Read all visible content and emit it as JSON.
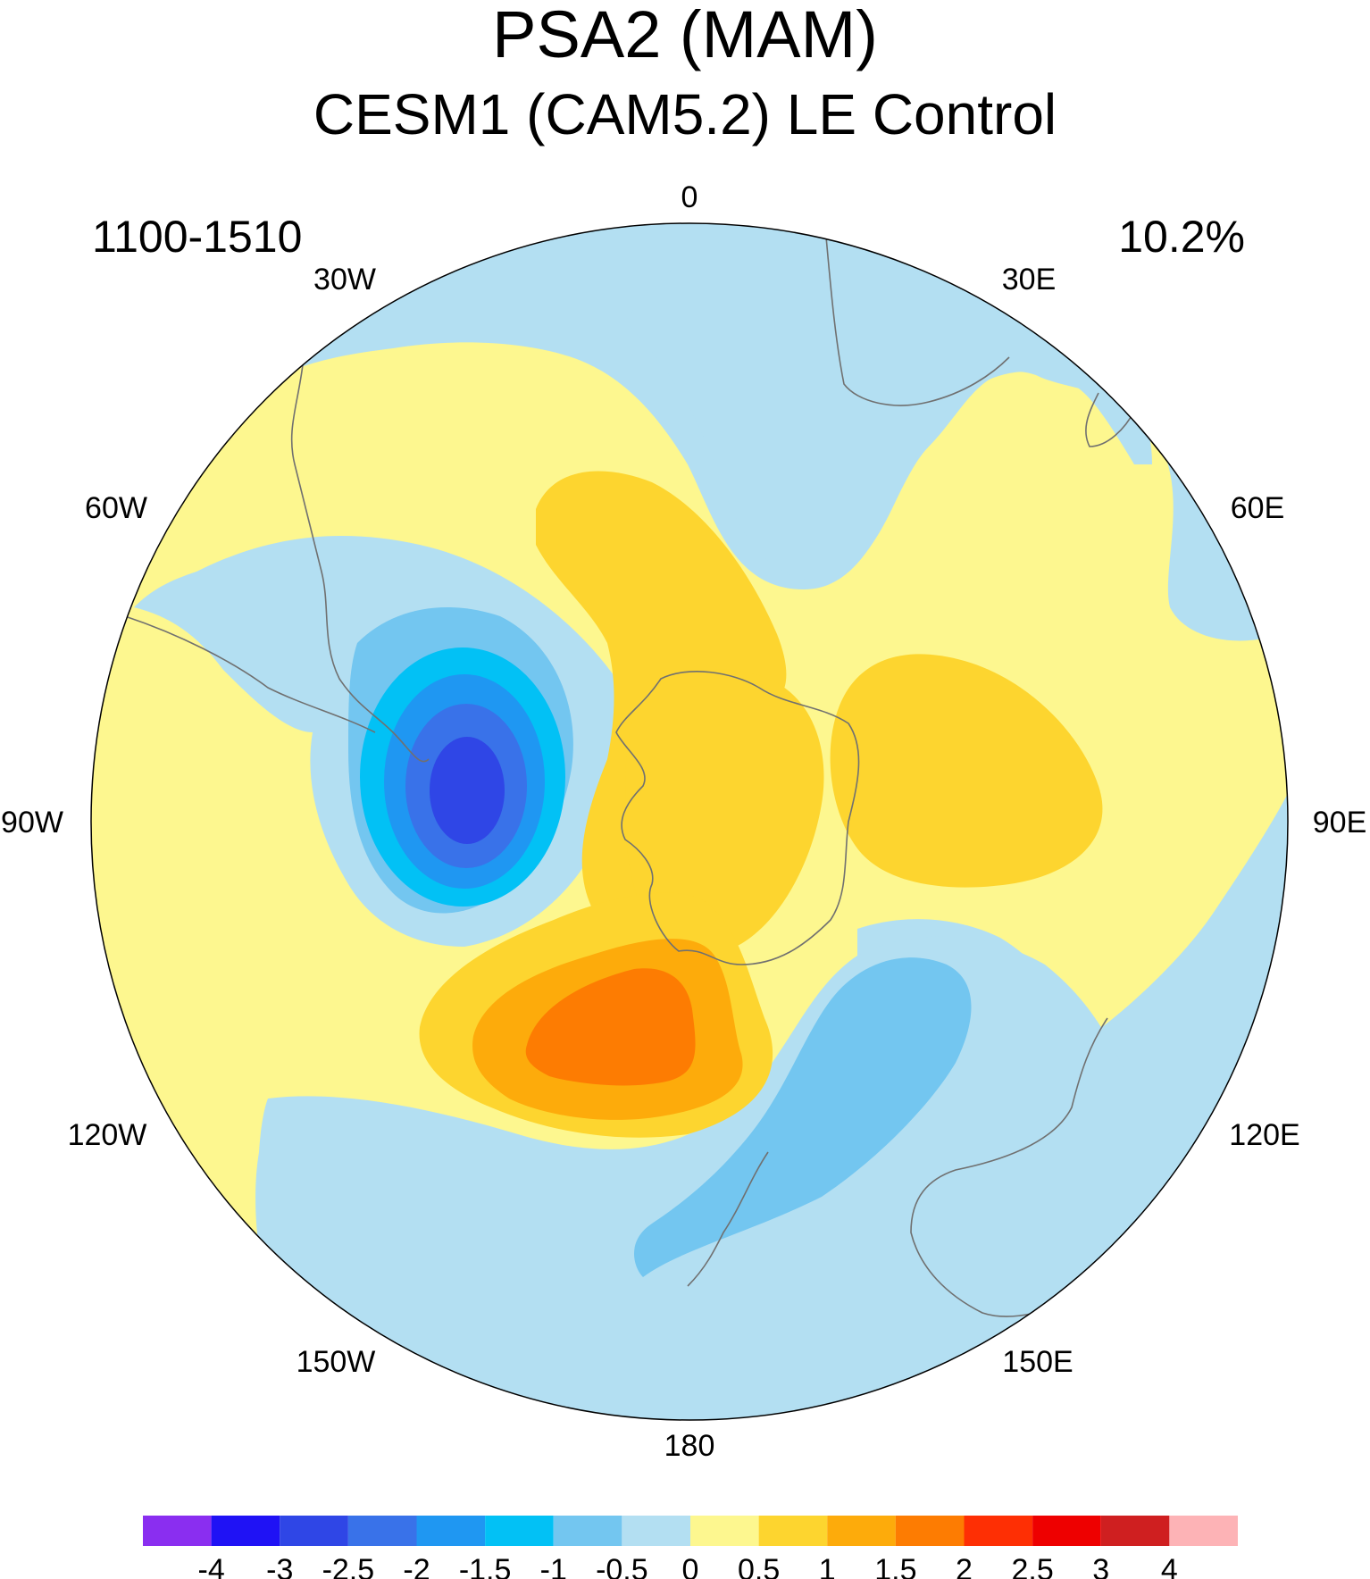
{
  "title": "PSA2 (MAM)",
  "subtitle": "CESM1 (CAM5.2) LE Control",
  "period": "1100-1510",
  "variance": "10.2%",
  "map": {
    "projection": "south-polar-stereographic",
    "longitude_labels": [
      "0",
      "30E",
      "60E",
      "90E",
      "120E",
      "150E",
      "180",
      "150W",
      "120W",
      "90W",
      "60W",
      "30W"
    ],
    "colors": {
      "neg_4": "#8a2ef0",
      "neg_3_5": "#1f12f5",
      "neg_3": "#2f46e6",
      "neg_2_5": "#3972e9",
      "neg_2": "#1f97f2",
      "neg_1_5": "#02c1f5",
      "neg_1": "#73c6f0",
      "neg_0_5": "#b3dff2",
      "pos_0": "#fdf78f",
      "pos_0_5": "#fdd52f",
      "pos_1": "#fdab0b",
      "pos_1_5": "#fd7c02",
      "pos_2": "#fe2f04",
      "pos_2_5": "#ee0000",
      "pos_3": "#cf1f20",
      "pos_4": "#fdb3b6",
      "coastline": "#707070"
    }
  },
  "colorbar": {
    "labels": [
      "-4",
      "-3",
      "-2.5",
      "-2",
      "-1.5",
      "-1",
      "-0.5",
      "0",
      "0.5",
      "1",
      "1.5",
      "2",
      "2.5",
      "3",
      "4"
    ],
    "colors": [
      "#8a2ef0",
      "#1f12f5",
      "#2f46e6",
      "#3972e9",
      "#1f97f2",
      "#02c1f5",
      "#73c6f0",
      "#b3dff2",
      "#fdf78f",
      "#fdd52f",
      "#fdab0b",
      "#fd7c02",
      "#fe2f04",
      "#ee0000",
      "#cf1f20",
      "#fdb3b6"
    ]
  }
}
